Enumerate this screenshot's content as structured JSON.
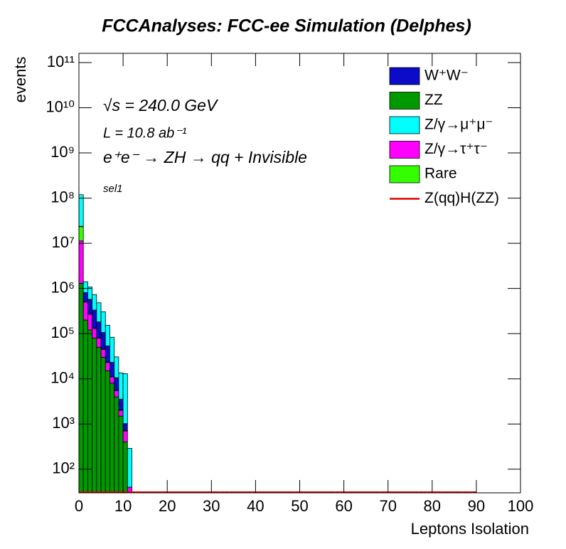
{
  "chart_data": {
    "type": "stacked_histogram",
    "title": "FCCAnalyses: FCC-ee Simulation (Delphes)",
    "x_label": "Leptons Isolation",
    "y_label": "events",
    "annotations": [
      "√s = 240.0 GeV",
      "L = 10.8 ab⁻¹",
      "e⁺e⁻ → ZH → qq + Invisible",
      "sel1"
    ],
    "log_y": true,
    "xlim": [
      0,
      100
    ],
    "ylim": [
      30,
      160000000000
    ],
    "xticks": [
      0,
      10,
      20,
      30,
      40,
      50,
      60,
      70,
      80,
      90,
      100
    ],
    "yticks": [
      {
        "value": 100,
        "label": "10²"
      },
      {
        "value": 1000,
        "label": "10³"
      },
      {
        "value": 10000,
        "label": "10⁴"
      },
      {
        "value": 100000,
        "label": "10⁵"
      },
      {
        "value": 1000000,
        "label": "10⁶"
      },
      {
        "value": 10000000,
        "label": "10⁷"
      },
      {
        "value": 100000000,
        "label": "10⁸"
      },
      {
        "value": 1000000000,
        "label": "10⁹"
      },
      {
        "value": 10000000000,
        "label": "10¹⁰"
      },
      {
        "value": 100000000000,
        "label": "10¹¹"
      }
    ],
    "legend": "top-right",
    "bins": [
      0,
      1,
      2,
      3,
      4,
      5,
      6,
      7,
      8,
      9,
      10,
      11,
      12,
      13,
      14,
      15,
      16,
      17,
      18,
      19,
      20,
      21,
      22,
      23,
      24,
      25,
      26,
      27,
      28,
      29,
      30,
      31,
      32,
      33,
      34,
      35,
      36,
      37,
      38,
      39,
      40,
      41,
      42,
      43,
      44,
      45,
      46,
      47,
      48,
      49,
      50,
      51,
      52,
      53,
      54,
      55,
      56,
      57,
      58,
      59,
      60,
      61,
      62,
      63,
      64,
      65,
      66,
      67,
      68,
      69,
      70,
      71,
      72,
      73,
      74,
      75,
      76,
      77,
      78,
      79,
      80,
      81,
      82,
      83,
      84,
      85,
      86,
      87,
      88,
      89,
      90,
      91,
      92,
      93,
      94,
      95,
      96,
      97,
      98,
      99,
      100
    ],
    "series": [
      {
        "name": "W⁺W⁻",
        "color": "#0c0cc8",
        "values": [
          500000,
          300000,
          300000,
          200000,
          100000,
          60000,
          30000,
          12000,
          5000,
          1500,
          300,
          0,
          0,
          0,
          0,
          0,
          0,
          0,
          0,
          0,
          0,
          0,
          0,
          0,
          0,
          0,
          0,
          0,
          0,
          0,
          0,
          0,
          0,
          0,
          0,
          0,
          0,
          0,
          0,
          0,
          0,
          0,
          0,
          0,
          0,
          0,
          0,
          0,
          0,
          0,
          0,
          0,
          0,
          0,
          0,
          0,
          0,
          0,
          0,
          0,
          0,
          0,
          0,
          0,
          0,
          0,
          0,
          0,
          0,
          0,
          0,
          0,
          0,
          0,
          0,
          0,
          0,
          0,
          0,
          0,
          0,
          0,
          0,
          0,
          0,
          0,
          0,
          0,
          0,
          0,
          0,
          0
        ]
      },
      {
        "name": "ZZ",
        "color": "#009900",
        "values": [
          1300000,
          200000,
          120000,
          80000,
          50000,
          30000,
          15000,
          8000,
          4000,
          1500,
          400,
          0,
          0,
          0,
          0,
          0,
          0,
          0,
          0,
          0,
          0,
          0,
          0,
          0,
          0,
          0,
          0,
          0,
          0,
          0,
          0,
          0,
          0,
          0,
          0,
          0,
          0,
          0,
          0,
          0,
          0,
          0,
          0,
          0,
          0,
          0,
          0,
          0,
          0,
          0,
          0,
          0,
          0,
          0,
          0,
          0,
          0,
          0,
          0,
          0,
          0,
          0,
          0,
          0,
          0,
          0,
          0,
          0,
          0,
          0,
          0,
          0,
          0,
          0,
          0,
          0,
          0,
          0,
          0,
          0,
          0,
          0,
          0,
          0,
          0,
          0,
          0,
          0,
          0,
          0,
          0,
          0
        ]
      },
      {
        "name": "Z/γ→μ⁺μ⁻",
        "color": "#00ffff",
        "values": [
          95000000,
          600000,
          500000,
          400000,
          300000,
          200000,
          100000,
          60000,
          20000,
          10000,
          12000,
          250,
          0,
          0,
          0,
          0,
          0,
          0,
          0,
          0,
          0,
          0,
          0,
          0,
          0,
          0,
          0,
          0,
          0,
          0,
          0,
          0,
          0,
          0,
          0,
          0,
          0,
          0,
          0,
          0,
          0,
          0,
          0,
          0,
          0,
          0,
          0,
          0,
          0,
          0,
          0,
          0,
          0,
          0,
          0,
          0,
          0,
          0,
          0,
          0,
          0,
          0,
          0,
          0,
          0,
          0,
          0,
          0,
          0,
          0,
          0,
          0,
          0,
          0,
          0,
          0,
          0,
          0,
          0,
          0,
          0,
          0,
          0,
          0,
          0,
          0,
          0,
          0,
          0,
          0,
          0,
          0
        ]
      },
      {
        "name": "Z/γ→τ⁺τ⁻",
        "color": "#ff00ff",
        "values": [
          10000000,
          300000,
          150000,
          50000,
          30000,
          15000,
          8000,
          3000,
          1500,
          500,
          300,
          40,
          0,
          0,
          0,
          0,
          0,
          0,
          0,
          0,
          0,
          0,
          0,
          0,
          0,
          0,
          0,
          0,
          0,
          0,
          0,
          0,
          0,
          0,
          0,
          0,
          0,
          0,
          0,
          0,
          0,
          0,
          0,
          0,
          0,
          0,
          0,
          0,
          0,
          0,
          0,
          0,
          0,
          0,
          0,
          0,
          0,
          0,
          0,
          0,
          0,
          0,
          0,
          0,
          0,
          0,
          0,
          0,
          0,
          0,
          0,
          0,
          0,
          0,
          0,
          0,
          0,
          0,
          0,
          0,
          0,
          0,
          0,
          0,
          0,
          0,
          0,
          0,
          0,
          0,
          0,
          0
        ]
      },
      {
        "name": "Rare",
        "color": "#33ff00",
        "values": [
          12000000,
          10000,
          5000,
          3000,
          2000,
          1000,
          500,
          200,
          100,
          50,
          20,
          0,
          0,
          0,
          0,
          0,
          0,
          0,
          0,
          0,
          0,
          0,
          0,
          0,
          0,
          0,
          0,
          0,
          0,
          0,
          0,
          0,
          0,
          0,
          0,
          0,
          0,
          0,
          0,
          0,
          0,
          0,
          0,
          0,
          0,
          0,
          0,
          0,
          0,
          0,
          0,
          0,
          0,
          0,
          0,
          0,
          0,
          0,
          0,
          0,
          0,
          0,
          0,
          0,
          0,
          0,
          0,
          0,
          0,
          0,
          0,
          0,
          0,
          0,
          0,
          0,
          0,
          0,
          0,
          0,
          0,
          0,
          0,
          0,
          0,
          0,
          0,
          0,
          0,
          0,
          0,
          0
        ]
      },
      {
        "name": "Z(qq)H(ZZ)",
        "color": "#dd0000",
        "line": true,
        "values": [
          20,
          2,
          1,
          0,
          0,
          0,
          0,
          0,
          0,
          0,
          0,
          0,
          0,
          0,
          0,
          0,
          0,
          0,
          0,
          0,
          0,
          0,
          0,
          0,
          0,
          0,
          0,
          0,
          0,
          0,
          0,
          0,
          0,
          0,
          0,
          0,
          0,
          0,
          0,
          0,
          0,
          0,
          0,
          0,
          0,
          0,
          0,
          0,
          0,
          0,
          0,
          0,
          0,
          0,
          0,
          0,
          0,
          0,
          0,
          0,
          0,
          0,
          0,
          0,
          0,
          0,
          0,
          0,
          0,
          0,
          0,
          0,
          0,
          0,
          0,
          0,
          0,
          0,
          0,
          0,
          0,
          0,
          0,
          0,
          0,
          0,
          0,
          0,
          0,
          0
        ]
      }
    ]
  }
}
